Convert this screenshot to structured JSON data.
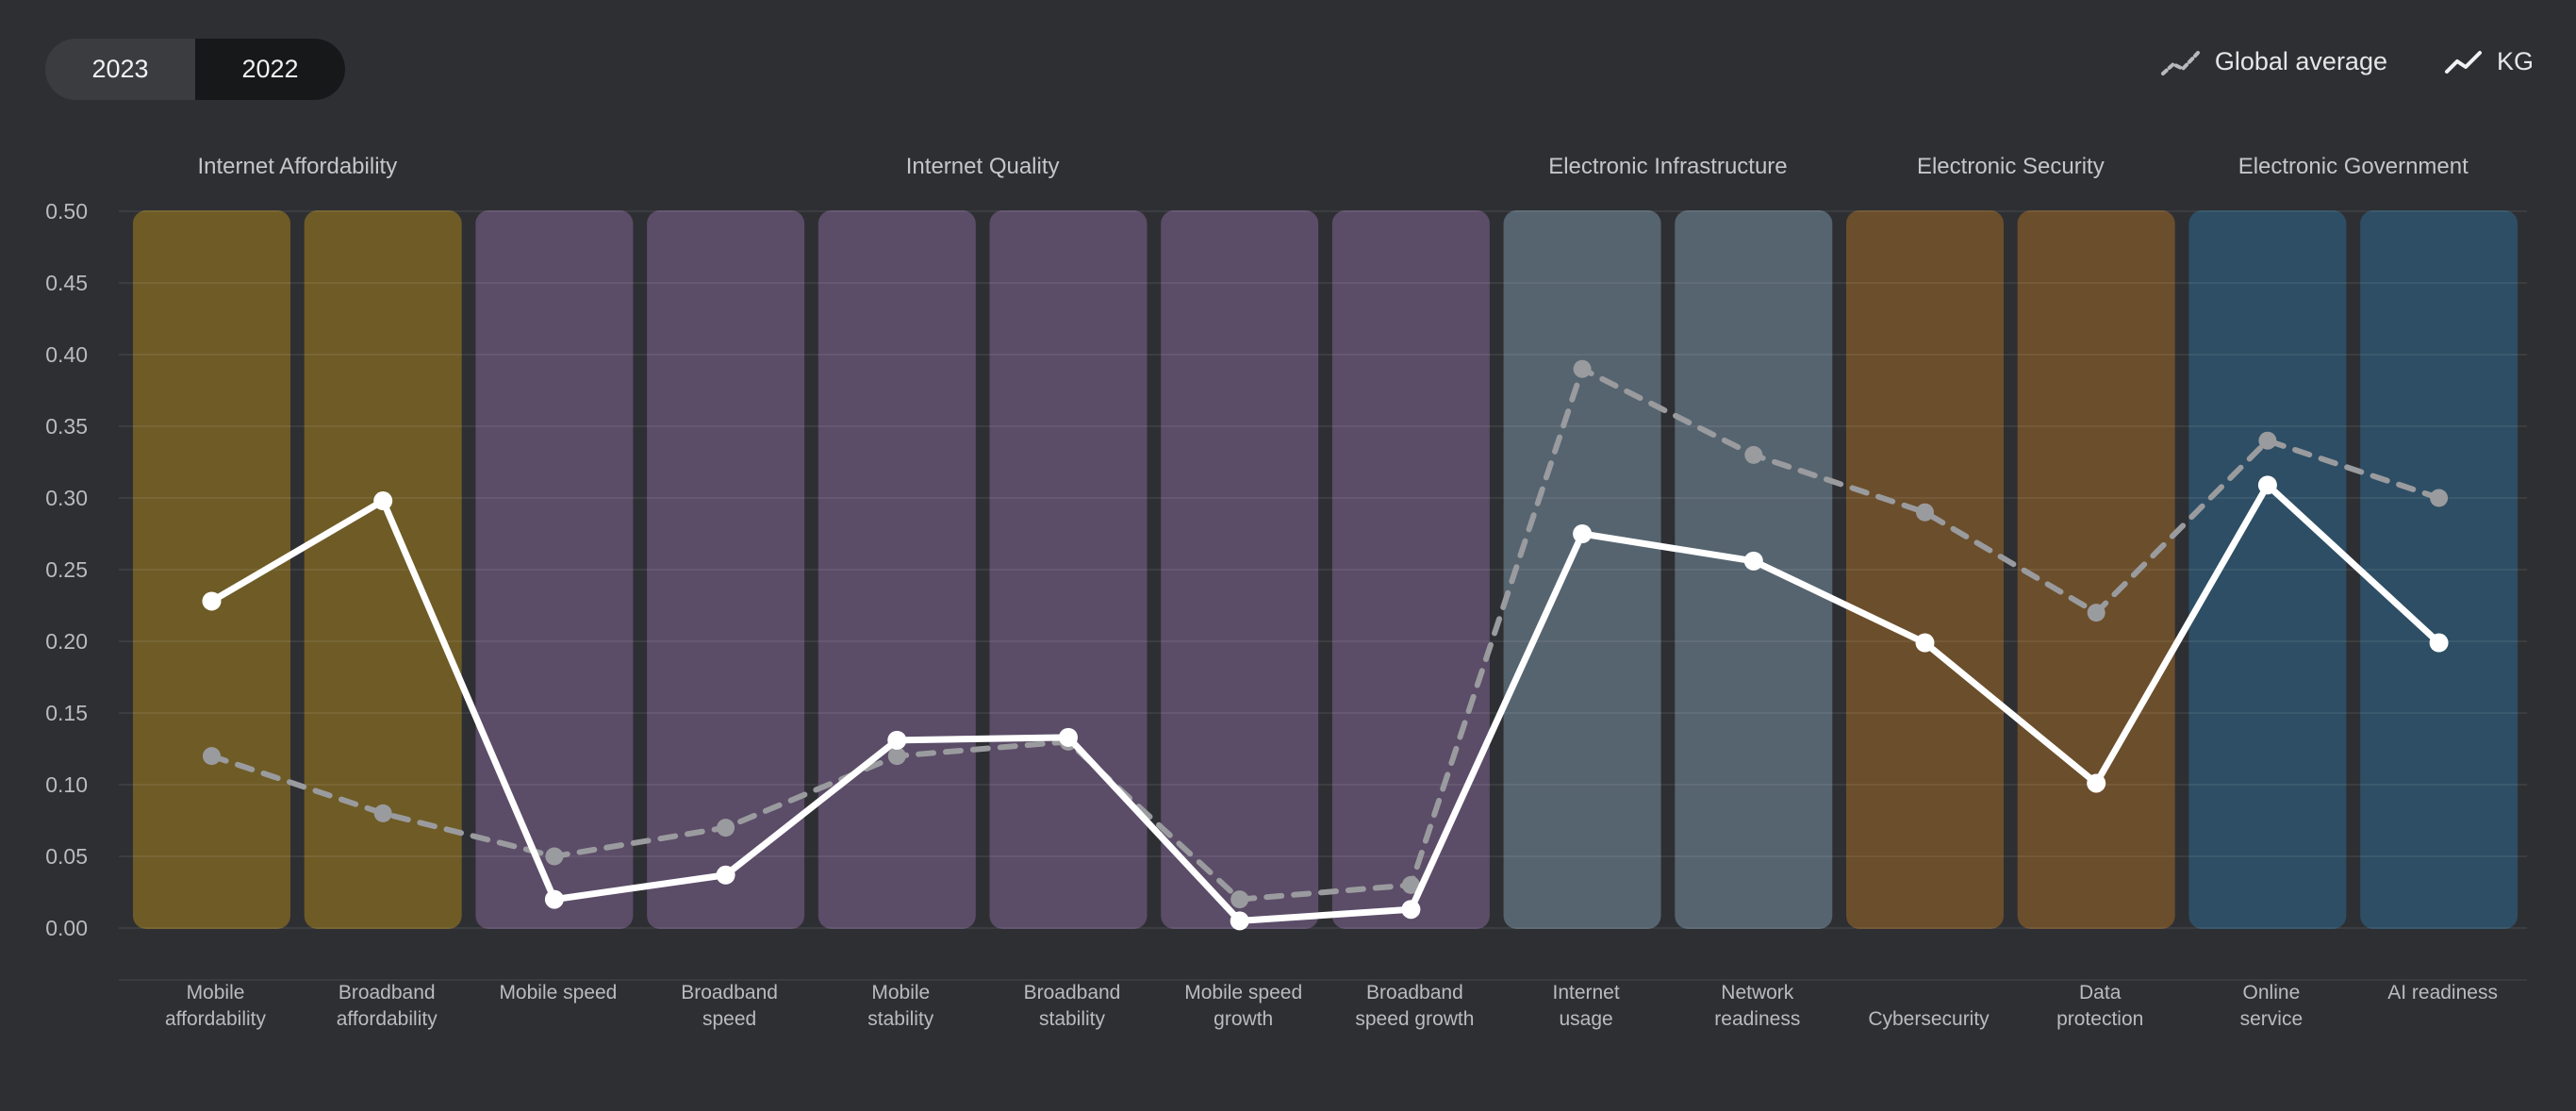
{
  "toolbar": {
    "years": [
      {
        "label": "2023",
        "active": false
      },
      {
        "label": "2022",
        "active": true
      }
    ]
  },
  "legend": {
    "items": [
      {
        "label": "Global average",
        "icon": "dashed-line-icon",
        "style": "dashed"
      },
      {
        "label": "KG",
        "icon": "solid-line-icon",
        "style": "solid"
      }
    ]
  },
  "chart_data": {
    "type": "line",
    "title": "",
    "xlabel": "",
    "ylabel": "",
    "ylim": [
      0,
      0.5
    ],
    "yticks": [
      "0.50",
      "0.45",
      "0.40",
      "0.35",
      "0.30",
      "0.25",
      "0.20",
      "0.15",
      "0.10",
      "0.05",
      "0.00"
    ],
    "grid": true,
    "legend_position": "top-right",
    "groups": [
      {
        "label": "Internet Affordability",
        "span": 2,
        "color": "#6e5b26"
      },
      {
        "label": "Internet Quality",
        "span": 6,
        "color": "#5b4c68"
      },
      {
        "label": "Electronic Infrastructure",
        "span": 2,
        "color": "#55646f"
      },
      {
        "label": "Electronic Security",
        "span": 2,
        "color": "#6b4e2b"
      },
      {
        "label": "Electronic Government",
        "span": 2,
        "color": "#2d4e64"
      }
    ],
    "categories": [
      [
        "Mobile",
        "affordability"
      ],
      [
        "Broadband",
        "affordability"
      ],
      [
        "Mobile speed"
      ],
      [
        "Broadband",
        "speed"
      ],
      [
        "Mobile",
        "stability"
      ],
      [
        "Broadband",
        "stability"
      ],
      [
        "Mobile speed",
        "growth"
      ],
      [
        "Broadband",
        "speed growth"
      ],
      [
        "Internet",
        "usage"
      ],
      [
        "Network",
        "readiness"
      ],
      [
        "",
        "Cybersecurity"
      ],
      [
        "Data",
        "protection"
      ],
      [
        "Online",
        "service"
      ],
      [
        "AI readiness"
      ]
    ],
    "series": [
      {
        "name": "Global average",
        "style": "dashed",
        "color": "#9a9b9e",
        "values": [
          0.12,
          0.08,
          0.05,
          0.07,
          0.12,
          0.13,
          0.02,
          0.03,
          0.39,
          0.33,
          0.29,
          0.22,
          0.34,
          0.3
        ]
      },
      {
        "name": "KG",
        "style": "solid",
        "color": "#ffffff",
        "values": [
          0.228,
          0.298,
          0.02,
          0.037,
          0.131,
          0.133,
          0.005,
          0.013,
          0.275,
          0.256,
          0.199,
          0.101,
          0.309,
          0.199
        ]
      }
    ]
  }
}
